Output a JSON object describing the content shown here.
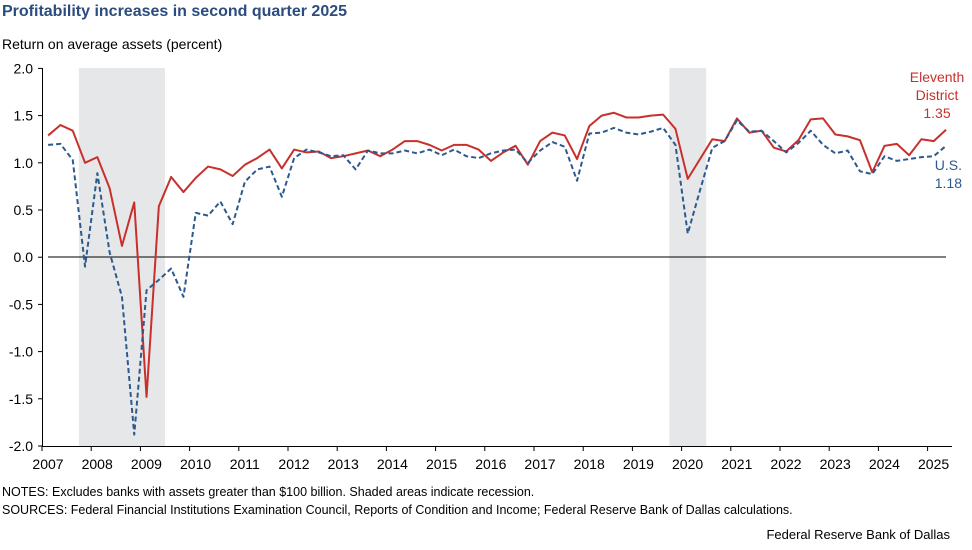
{
  "title": "Profitability increases in second quarter 2025",
  "notes": "NOTES: Excludes banks with assets greater than $100 billion. Shaded areas indicate recession.",
  "sources": "SOURCES: Federal Financial Institutions Examination Council, Reports of Condition and Income; Federal Reserve Bank of Dallas calculations.",
  "credit": "Federal Reserve Bank of Dallas",
  "colors": {
    "district": "#c8302c",
    "us": "#2d5a8e",
    "recession": "#e6e7e9",
    "title": "#2b4c7e"
  },
  "chart_data": {
    "type": "line",
    "title": "Profitability increases in second quarter 2025",
    "ylabel": "Return on average assets (percent)",
    "xlabel": "",
    "ylim": [
      -2.0,
      2.0
    ],
    "xlim": [
      2007,
      2025.6
    ],
    "yticks": [
      "2.0",
      "1.5",
      "1.0",
      "0.5",
      "0.0",
      "-0.5",
      "-1.0",
      "-1.5",
      "-2.0"
    ],
    "ytick_values": [
      2.0,
      1.5,
      1.0,
      0.5,
      0.0,
      -0.5,
      -1.0,
      -1.5,
      -2.0
    ],
    "xticks": [
      "2007",
      "2008",
      "2009",
      "2010",
      "2011",
      "2012",
      "2013",
      "2014",
      "2015",
      "2016",
      "2017",
      "2018",
      "2019",
      "2020",
      "2021",
      "2022",
      "2023",
      "2024",
      "2025"
    ],
    "frequency": "quarterly",
    "start": "2007Q1",
    "end": "2025Q2",
    "recessions": [
      [
        2007.75,
        2009.5
      ],
      [
        2019.75,
        2020.5
      ]
    ],
    "series": [
      {
        "name": "Eleventh District",
        "label_line1": "Eleventh",
        "label_line2": "District",
        "last_label": "1.35",
        "style": "solid",
        "values": [
          1.29,
          1.4,
          1.34,
          1.0,
          1.06,
          0.73,
          0.12,
          0.58,
          -1.48,
          0.54,
          0.85,
          0.69,
          0.84,
          0.96,
          0.93,
          0.86,
          0.98,
          1.05,
          1.14,
          0.94,
          1.14,
          1.11,
          1.12,
          1.05,
          1.07,
          1.1,
          1.13,
          1.07,
          1.14,
          1.23,
          1.23,
          1.19,
          1.13,
          1.19,
          1.19,
          1.14,
          1.02,
          1.11,
          1.18,
          0.98,
          1.23,
          1.32,
          1.29,
          1.04,
          1.39,
          1.5,
          1.53,
          1.48,
          1.48,
          1.5,
          1.51,
          1.36,
          0.83,
          1.04,
          1.25,
          1.23,
          1.47,
          1.32,
          1.34,
          1.16,
          1.12,
          1.24,
          1.46,
          1.47,
          1.3,
          1.28,
          1.24,
          0.9,
          1.18,
          1.2,
          1.08,
          1.25,
          1.23,
          1.35
        ]
      },
      {
        "name": "U.S.",
        "label_line1": "U.S.",
        "last_label": "1.18",
        "style": "dashed",
        "values": [
          1.19,
          1.2,
          1.03,
          -0.1,
          0.89,
          0.05,
          -0.42,
          -1.88,
          -0.35,
          -0.24,
          -0.12,
          -0.42,
          0.47,
          0.44,
          0.59,
          0.35,
          0.8,
          0.93,
          0.96,
          0.64,
          1.05,
          1.14,
          1.11,
          1.07,
          1.08,
          0.93,
          1.13,
          1.1,
          1.1,
          1.13,
          1.1,
          1.14,
          1.08,
          1.14,
          1.07,
          1.05,
          1.1,
          1.13,
          1.14,
          1.0,
          1.13,
          1.22,
          1.17,
          0.81,
          1.31,
          1.32,
          1.37,
          1.32,
          1.3,
          1.33,
          1.37,
          1.19,
          0.25,
          0.71,
          1.16,
          1.23,
          1.45,
          1.33,
          1.34,
          1.23,
          1.11,
          1.21,
          1.34,
          1.19,
          1.1,
          1.13,
          0.91,
          0.88,
          1.07,
          1.02,
          1.04,
          1.06,
          1.07,
          1.18
        ]
      }
    ]
  }
}
